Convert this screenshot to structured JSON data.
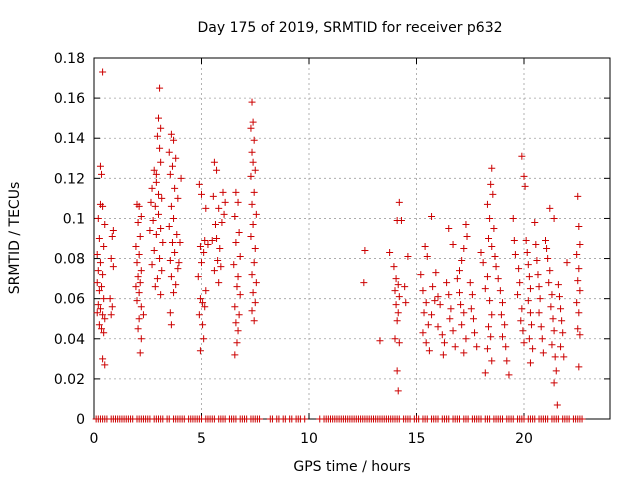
{
  "chart_data": {
    "type": "scatter",
    "title": "Day 175 of 2019, SRMTID for receiver p632",
    "xlabel": "GPS time / hours",
    "ylabel": "SRMTID / TECUs",
    "xlim": [
      0,
      24
    ],
    "ylim": [
      0,
      0.18
    ],
    "grid": true,
    "marker": "+",
    "marker_color": "#cc0000",
    "x_ticks": [
      {
        "value": 0,
        "label": "0"
      },
      {
        "value": 5,
        "label": "5"
      },
      {
        "value": 10,
        "label": "10"
      },
      {
        "value": 15,
        "label": "15"
      },
      {
        "value": 20,
        "label": "20"
      }
    ],
    "y_ticks": [
      {
        "value": 0,
        "label": "0"
      },
      {
        "value": 0.02,
        "label": "0.02"
      },
      {
        "value": 0.04,
        "label": "0.04"
      },
      {
        "value": 0.06,
        "label": "0.06"
      },
      {
        "value": 0.08,
        "label": "0.08"
      },
      {
        "value": 0.1,
        "label": "0.1"
      },
      {
        "value": 0.12,
        "label": "0.12"
      },
      {
        "value": 0.14,
        "label": "0.14"
      },
      {
        "value": 0.16,
        "label": "0.16"
      },
      {
        "value": 0.18,
        "label": "0.18"
      }
    ],
    "points": [
      [
        0.4,
        0.173
      ],
      [
        0.3,
        0.126
      ],
      [
        0.35,
        0.122
      ],
      [
        0.3,
        0.107
      ],
      [
        0.4,
        0.106
      ],
      [
        0.2,
        0.1
      ],
      [
        0.5,
        0.097
      ],
      [
        0.25,
        0.09
      ],
      [
        0.45,
        0.086
      ],
      [
        0.15,
        0.082
      ],
      [
        0.3,
        0.078
      ],
      [
        0.2,
        0.074
      ],
      [
        0.4,
        0.072
      ],
      [
        0.15,
        0.068
      ],
      [
        0.35,
        0.066
      ],
      [
        0.25,
        0.064
      ],
      [
        0.45,
        0.06
      ],
      [
        0.2,
        0.057
      ],
      [
        0.3,
        0.055
      ],
      [
        0.15,
        0.053
      ],
      [
        0.4,
        0.052
      ],
      [
        0.5,
        0.05
      ],
      [
        0.25,
        0.047
      ],
      [
        0.35,
        0.045
      ],
      [
        0.45,
        0.043
      ],
      [
        0.4,
        0.03
      ],
      [
        0.5,
        0.027
      ],
      [
        0.9,
        0.094
      ],
      [
        0.85,
        0.091
      ],
      [
        0.8,
        0.08
      ],
      [
        0.9,
        0.076
      ],
      [
        0.75,
        0.06
      ],
      [
        0.85,
        0.056
      ],
      [
        0.8,
        0.052
      ],
      [
        2.0,
        0.107
      ],
      [
        2.1,
        0.106
      ],
      [
        2.2,
        0.101
      ],
      [
        2.05,
        0.098
      ],
      [
        2.15,
        0.091
      ],
      [
        1.95,
        0.086
      ],
      [
        2.1,
        0.082
      ],
      [
        2.0,
        0.078
      ],
      [
        2.2,
        0.074
      ],
      [
        2.05,
        0.071
      ],
      [
        2.15,
        0.068
      ],
      [
        1.95,
        0.066
      ],
      [
        2.1,
        0.063
      ],
      [
        2.0,
        0.059
      ],
      [
        2.2,
        0.056
      ],
      [
        2.1,
        0.05
      ],
      [
        2.05,
        0.045
      ],
      [
        2.2,
        0.04
      ],
      [
        2.15,
        0.033
      ],
      [
        2.3,
        0.052
      ],
      [
        2.8,
        0.124
      ],
      [
        2.9,
        0.122
      ],
      [
        2.7,
        0.115
      ],
      [
        3.0,
        0.112
      ],
      [
        3.05,
        0.165
      ],
      [
        3.0,
        0.15
      ],
      [
        3.1,
        0.145
      ],
      [
        2.95,
        0.141
      ],
      [
        3.05,
        0.135
      ],
      [
        3.1,
        0.128
      ],
      [
        2.9,
        0.118
      ],
      [
        3.15,
        0.11
      ],
      [
        2.85,
        0.106
      ],
      [
        3.0,
        0.102
      ],
      [
        2.75,
        0.099
      ],
      [
        3.1,
        0.095
      ],
      [
        2.9,
        0.092
      ],
      [
        3.2,
        0.088
      ],
      [
        2.8,
        0.084
      ],
      [
        3.05,
        0.08
      ],
      [
        2.7,
        0.077
      ],
      [
        3.15,
        0.074
      ],
      [
        2.95,
        0.07
      ],
      [
        2.85,
        0.066
      ],
      [
        3.1,
        0.062
      ],
      [
        2.65,
        0.108
      ],
      [
        2.6,
        0.094
      ],
      [
        3.6,
        0.142
      ],
      [
        3.7,
        0.139
      ],
      [
        3.5,
        0.133
      ],
      [
        3.8,
        0.13
      ],
      [
        3.65,
        0.126
      ],
      [
        3.55,
        0.122
      ],
      [
        4.05,
        0.12
      ],
      [
        3.75,
        0.115
      ],
      [
        3.9,
        0.11
      ],
      [
        3.6,
        0.106
      ],
      [
        3.7,
        0.1
      ],
      [
        3.5,
        0.096
      ],
      [
        3.85,
        0.092
      ],
      [
        3.65,
        0.088
      ],
      [
        3.75,
        0.083
      ],
      [
        3.55,
        0.079
      ],
      [
        3.9,
        0.075
      ],
      [
        3.6,
        0.071
      ],
      [
        3.8,
        0.067
      ],
      [
        3.7,
        0.063
      ],
      [
        3.55,
        0.053
      ],
      [
        3.6,
        0.047
      ],
      [
        4.0,
        0.088
      ],
      [
        3.95,
        0.078
      ],
      [
        4.9,
        0.117
      ],
      [
        5.0,
        0.112
      ],
      [
        5.15,
        0.089
      ],
      [
        5.2,
        0.105
      ],
      [
        4.95,
        0.086
      ],
      [
        5.1,
        0.083
      ],
      [
        5.0,
        0.078
      ],
      [
        4.85,
        0.071
      ],
      [
        5.2,
        0.064
      ],
      [
        4.95,
        0.06
      ],
      [
        5.05,
        0.058
      ],
      [
        5.15,
        0.056
      ],
      [
        4.9,
        0.052
      ],
      [
        5.05,
        0.047
      ],
      [
        5.1,
        0.04
      ],
      [
        4.95,
        0.034
      ],
      [
        5.3,
        0.087
      ],
      [
        5.6,
        0.128
      ],
      [
        5.7,
        0.124
      ],
      [
        5.55,
        0.111
      ],
      [
        5.8,
        0.105
      ],
      [
        5.65,
        0.097
      ],
      [
        5.7,
        0.09
      ],
      [
        5.5,
        0.089
      ],
      [
        5.85,
        0.085
      ],
      [
        5.75,
        0.079
      ],
      [
        5.6,
        0.074
      ],
      [
        5.9,
        0.076
      ],
      [
        5.8,
        0.068
      ],
      [
        6.0,
        0.113
      ],
      [
        6.1,
        0.108
      ],
      [
        6.05,
        0.102
      ],
      [
        5.95,
        0.098
      ],
      [
        6.6,
        0.113
      ],
      [
        6.7,
        0.108
      ],
      [
        6.55,
        0.101
      ],
      [
        6.75,
        0.093
      ],
      [
        6.6,
        0.088
      ],
      [
        6.8,
        0.081
      ],
      [
        6.5,
        0.077
      ],
      [
        6.7,
        0.071
      ],
      [
        6.65,
        0.066
      ],
      [
        6.8,
        0.062
      ],
      [
        6.55,
        0.056
      ],
      [
        6.75,
        0.052
      ],
      [
        6.6,
        0.048
      ],
      [
        6.7,
        0.044
      ],
      [
        6.65,
        0.038
      ],
      [
        6.55,
        0.032
      ],
      [
        7.35,
        0.158
      ],
      [
        7.4,
        0.148
      ],
      [
        7.3,
        0.145
      ],
      [
        7.45,
        0.139
      ],
      [
        7.35,
        0.133
      ],
      [
        7.4,
        0.128
      ],
      [
        7.5,
        0.124
      ],
      [
        7.3,
        0.121
      ],
      [
        7.45,
        0.113
      ],
      [
        7.35,
        0.107
      ],
      [
        7.55,
        0.102
      ],
      [
        7.4,
        0.097
      ],
      [
        7.3,
        0.091
      ],
      [
        7.5,
        0.085
      ],
      [
        7.45,
        0.078
      ],
      [
        7.35,
        0.072
      ],
      [
        7.55,
        0.068
      ],
      [
        7.4,
        0.063
      ],
      [
        7.5,
        0.058
      ],
      [
        7.35,
        0.054
      ],
      [
        7.45,
        0.049
      ],
      [
        12.6,
        0.084
      ],
      [
        12.55,
        0.068
      ],
      [
        13.3,
        0.039
      ],
      [
        13.75,
        0.083
      ],
      [
        13.95,
        0.076
      ],
      [
        14.05,
        0.07
      ],
      [
        14.1,
        0.099
      ],
      [
        14.15,
        0.067
      ],
      [
        14.0,
        0.064
      ],
      [
        14.2,
        0.061
      ],
      [
        14.05,
        0.057
      ],
      [
        14.15,
        0.053
      ],
      [
        14.1,
        0.049
      ],
      [
        14.0,
        0.04
      ],
      [
        14.2,
        0.038
      ],
      [
        14.1,
        0.024
      ],
      [
        14.15,
        0.014
      ],
      [
        14.2,
        0.108
      ],
      [
        14.3,
        0.099
      ],
      [
        14.6,
        0.081
      ],
      [
        14.45,
        0.066
      ],
      [
        14.5,
        0.058
      ],
      [
        15.4,
        0.086
      ],
      [
        15.5,
        0.081
      ],
      [
        15.2,
        0.072
      ],
      [
        15.3,
        0.064
      ],
      [
        15.45,
        0.058
      ],
      [
        15.35,
        0.053
      ],
      [
        15.55,
        0.047
      ],
      [
        15.3,
        0.043
      ],
      [
        15.45,
        0.038
      ],
      [
        15.6,
        0.034
      ],
      [
        15.7,
        0.101
      ],
      [
        15.75,
        0.066
      ],
      [
        15.85,
        0.059
      ],
      [
        15.7,
        0.052
      ],
      [
        15.9,
        0.073
      ],
      [
        16.0,
        0.061
      ],
      [
        16.1,
        0.057
      ],
      [
        16.0,
        0.046
      ],
      [
        16.2,
        0.042
      ],
      [
        16.3,
        0.038
      ],
      [
        16.25,
        0.032
      ],
      [
        16.4,
        0.068
      ],
      [
        16.5,
        0.062
      ],
      [
        16.6,
        0.055
      ],
      [
        16.55,
        0.05
      ],
      [
        16.7,
        0.044
      ],
      [
        16.8,
        0.036
      ],
      [
        16.9,
        0.07
      ],
      [
        17.0,
        0.063
      ],
      [
        17.05,
        0.057
      ],
      [
        17.2,
        0.053
      ],
      [
        17.1,
        0.047
      ],
      [
        17.3,
        0.04
      ],
      [
        17.2,
        0.033
      ],
      [
        17.5,
        0.068
      ],
      [
        17.6,
        0.062
      ],
      [
        17.55,
        0.055
      ],
      [
        17.65,
        0.05
      ],
      [
        17.7,
        0.043
      ],
      [
        17.8,
        0.036
      ],
      [
        17.3,
        0.097
      ],
      [
        17.35,
        0.091
      ],
      [
        17.2,
        0.085
      ],
      [
        17.1,
        0.079
      ],
      [
        17.0,
        0.074
      ],
      [
        16.5,
        0.095
      ],
      [
        16.7,
        0.087
      ],
      [
        18.0,
        0.083
      ],
      [
        18.1,
        0.078
      ],
      [
        18.3,
        0.071
      ],
      [
        18.2,
        0.065
      ],
      [
        18.4,
        0.059
      ],
      [
        18.5,
        0.052
      ],
      [
        18.35,
        0.046
      ],
      [
        18.45,
        0.041
      ],
      [
        18.3,
        0.035
      ],
      [
        18.5,
        0.029
      ],
      [
        18.2,
        0.023
      ],
      [
        18.45,
        0.117
      ],
      [
        18.5,
        0.125
      ],
      [
        18.55,
        0.112
      ],
      [
        18.3,
        0.107
      ],
      [
        18.4,
        0.1
      ],
      [
        18.6,
        0.095
      ],
      [
        18.35,
        0.09
      ],
      [
        18.5,
        0.086
      ],
      [
        18.65,
        0.081
      ],
      [
        18.7,
        0.076
      ],
      [
        18.8,
        0.07
      ],
      [
        18.9,
        0.064
      ],
      [
        19.0,
        0.058
      ],
      [
        18.95,
        0.052
      ],
      [
        19.1,
        0.047
      ],
      [
        19.0,
        0.041
      ],
      [
        19.15,
        0.036
      ],
      [
        19.2,
        0.029
      ],
      [
        19.3,
        0.022
      ],
      [
        19.5,
        0.1
      ],
      [
        19.55,
        0.089
      ],
      [
        19.6,
        0.082
      ],
      [
        19.75,
        0.075
      ],
      [
        19.8,
        0.068
      ],
      [
        19.7,
        0.062
      ],
      [
        19.9,
        0.055
      ],
      [
        19.85,
        0.049
      ],
      [
        19.95,
        0.044
      ],
      [
        20.0,
        0.038
      ],
      [
        19.9,
        0.131
      ],
      [
        20.0,
        0.121
      ],
      [
        20.05,
        0.116
      ],
      [
        20.1,
        0.089
      ],
      [
        20.15,
        0.083
      ],
      [
        20.2,
        0.077
      ],
      [
        20.25,
        0.071
      ],
      [
        20.3,
        0.065
      ],
      [
        20.2,
        0.059
      ],
      [
        20.3,
        0.053
      ],
      [
        20.35,
        0.047
      ],
      [
        20.25,
        0.04
      ],
      [
        20.4,
        0.035
      ],
      [
        20.3,
        0.028
      ],
      [
        20.5,
        0.098
      ],
      [
        20.55,
        0.087
      ],
      [
        20.6,
        0.079
      ],
      [
        20.65,
        0.072
      ],
      [
        20.7,
        0.066
      ],
      [
        20.75,
        0.06
      ],
      [
        20.7,
        0.053
      ],
      [
        20.8,
        0.046
      ],
      [
        20.85,
        0.04
      ],
      [
        20.9,
        0.033
      ],
      [
        21.0,
        0.089
      ],
      [
        21.05,
        0.085
      ],
      [
        21.1,
        0.08
      ],
      [
        21.2,
        0.074
      ],
      [
        21.15,
        0.068
      ],
      [
        21.3,
        0.062
      ],
      [
        21.25,
        0.056
      ],
      [
        21.35,
        0.05
      ],
      [
        21.4,
        0.044
      ],
      [
        21.3,
        0.037
      ],
      [
        21.45,
        0.031
      ],
      [
        21.5,
        0.024
      ],
      [
        21.4,
        0.018
      ],
      [
        21.55,
        0.007
      ],
      [
        21.6,
        0.067
      ],
      [
        21.65,
        0.061
      ],
      [
        21.7,
        0.055
      ],
      [
        21.75,
        0.049
      ],
      [
        21.8,
        0.043
      ],
      [
        21.7,
        0.036
      ],
      [
        21.85,
        0.031
      ],
      [
        22.0,
        0.078
      ],
      [
        21.2,
        0.105
      ],
      [
        21.4,
        0.1
      ],
      [
        22.5,
        0.111
      ],
      [
        22.55,
        0.096
      ],
      [
        22.6,
        0.087
      ],
      [
        22.45,
        0.082
      ],
      [
        22.55,
        0.075
      ],
      [
        22.5,
        0.069
      ],
      [
        22.6,
        0.064
      ],
      [
        22.45,
        0.058
      ],
      [
        22.55,
        0.053
      ],
      [
        22.5,
        0.045
      ],
      [
        22.6,
        0.042
      ],
      [
        22.55,
        0.026
      ]
    ],
    "zero_points_x": [
      0.1,
      0.2,
      0.3,
      0.4,
      0.5,
      0.6,
      0.8,
      0.9,
      1.0,
      1.1,
      1.2,
      1.3,
      1.4,
      1.5,
      1.6,
      1.7,
      1.8,
      2.0,
      2.1,
      2.2,
      2.3,
      2.4,
      2.5,
      2.6,
      2.8,
      2.9,
      3.0,
      3.1,
      3.2,
      3.4,
      3.5,
      3.7,
      3.8,
      3.9,
      4.0,
      4.1,
      4.2,
      4.4,
      4.5,
      4.6,
      4.7,
      4.8,
      4.9,
      5.0,
      5.2,
      5.3,
      5.4,
      5.5,
      5.6,
      5.8,
      5.9,
      6.0,
      6.1,
      6.3,
      6.4,
      6.5,
      6.6,
      6.8,
      6.9,
      7.0,
      7.1,
      7.3,
      7.4,
      7.5,
      7.6,
      7.7,
      8.2,
      8.3,
      8.5,
      8.6,
      8.8,
      8.9,
      9.1,
      9.2,
      9.4,
      9.5,
      9.6,
      9.8,
      10.5,
      10.7,
      10.8,
      10.9,
      11.0,
      11.1,
      11.2,
      11.3,
      11.4,
      11.5,
      11.6,
      11.7,
      11.8,
      11.9,
      12.0,
      12.1,
      12.2,
      12.3,
      12.4,
      12.5,
      12.6,
      12.7,
      12.8,
      12.9,
      13.0,
      13.1,
      13.2,
      13.3,
      13.4,
      13.5,
      13.6,
      13.7,
      13.8,
      13.9,
      14.0,
      14.1,
      14.2,
      14.4,
      14.5,
      14.6,
      14.7,
      14.9,
      15.0,
      15.1,
      15.3,
      15.4,
      15.5,
      15.7,
      15.8,
      15.9,
      16.0,
      16.2,
      16.3,
      16.4,
      16.5,
      16.7,
      16.8,
      16.9,
      17.0,
      17.2,
      17.3,
      17.4,
      17.6,
      17.7,
      17.8,
      17.9,
      18.0,
      18.2,
      18.3,
      18.4,
      18.6,
      18.7,
      18.8,
      18.9,
      19.0,
      19.2,
      19.3,
      19.4,
      19.5,
      19.7,
      19.8,
      19.9,
      20.0,
      20.2,
      20.3,
      20.4,
      20.5,
      20.7,
      20.8,
      20.9,
      21.0,
      21.1,
      21.3,
      21.4,
      21.5,
      21.6,
      21.8,
      21.9,
      22.0,
      22.1,
      22.3,
      22.4,
      22.5,
      22.6,
      22.7
    ]
  }
}
